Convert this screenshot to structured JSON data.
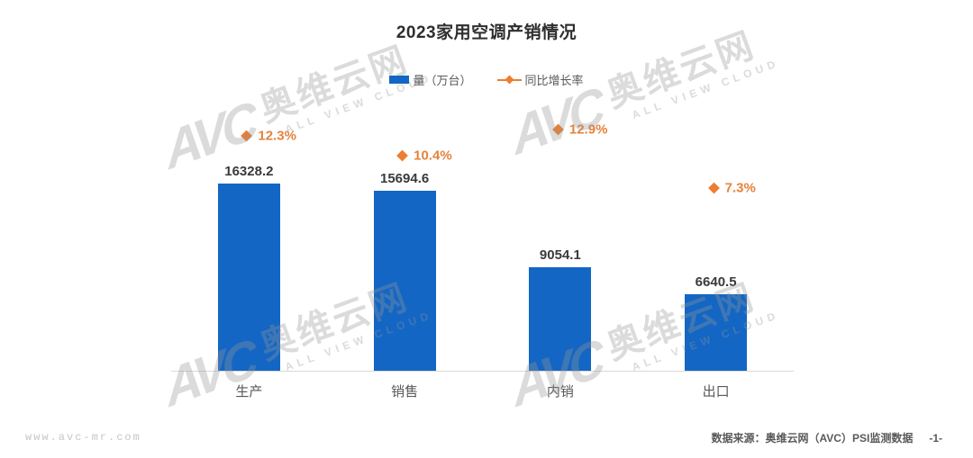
{
  "title": "2023家用空调产销情况",
  "legend": {
    "bar_label": "量（万台）",
    "line_label": "同比增长率"
  },
  "chart_data": {
    "type": "bar",
    "categories": [
      "生产",
      "销售",
      "内销",
      "出口"
    ],
    "series": [
      {
        "name": "量（万台）",
        "type": "bar",
        "values": [
          16328.2,
          15694.6,
          9054.1,
          6640.5
        ]
      },
      {
        "name": "同比增长率",
        "type": "point",
        "values": [
          12.3,
          10.4,
          12.9,
          7.3
        ],
        "unit": "%"
      }
    ],
    "title": "2023家用空调产销情况",
    "xlabel": "",
    "ylabel": "",
    "ylim": [
      0,
      17000
    ],
    "secondary_ylim_pct": [
      0,
      25
    ],
    "grid": false,
    "legend_position": "top",
    "value_labels_shown": true
  },
  "colors": {
    "bar": "#1366c4",
    "marker": "#ed7d31",
    "axis_line": "#d8d8d8"
  },
  "watermark": {
    "logo": "AVC",
    "cn": "奥维云网",
    "en": "ALL VIEW CLOUD"
  },
  "footer": {
    "left": "www.avc-mr.com",
    "source": "数据来源：奥维云网（AVC）PSI监测数据",
    "page": "-1-"
  }
}
